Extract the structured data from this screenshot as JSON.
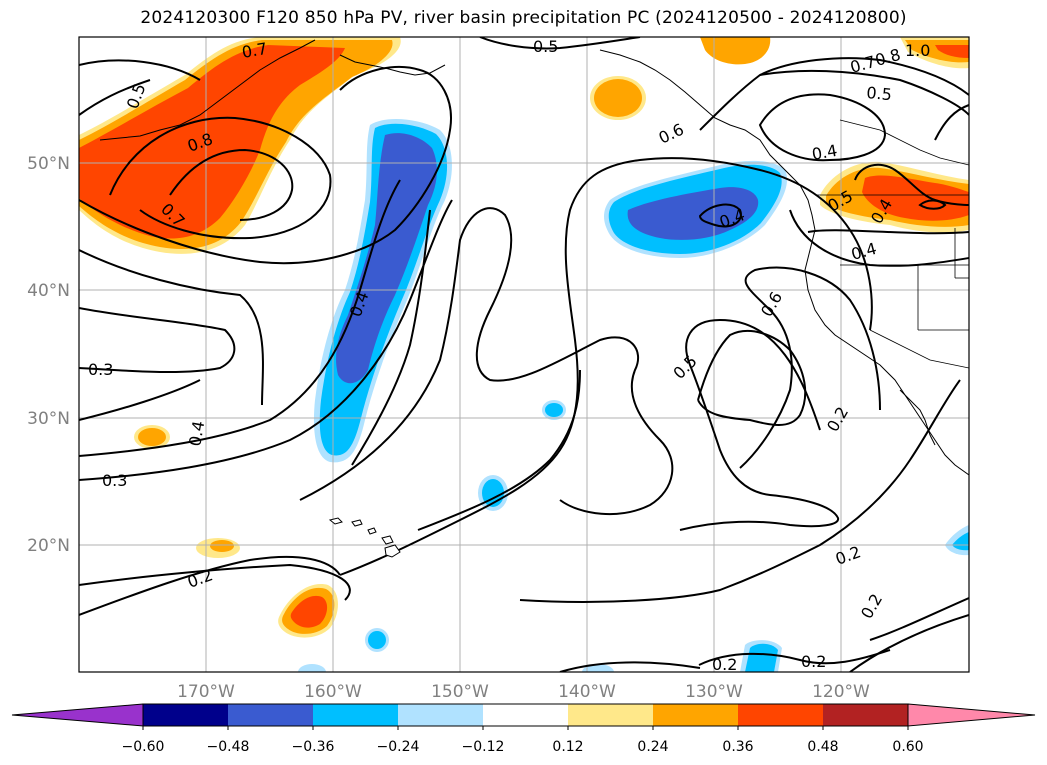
{
  "title": "2024120300 F120 850 hPa PV, river basin precipitation PC (2024120500 - 2024120800)",
  "lon_ticks": [
    "170°W",
    "160°W",
    "150°W",
    "140°W",
    "130°W",
    "120°W"
  ],
  "lat_ticks": [
    "50°N",
    "40°N",
    "30°N",
    "20°N"
  ],
  "colorbar": {
    "ticks": [
      "−0.60",
      "−0.48",
      "−0.36",
      "−0.24",
      "−0.12",
      "0.12",
      "0.24",
      "0.36",
      "0.48",
      "0.60"
    ],
    "colors": [
      "#9932cc",
      "#00008b",
      "#3a5bd0",
      "#00bfff",
      "#b0e2ff",
      "#ffffff",
      "#ffe88a",
      "#ffa500",
      "#ff4500",
      "#b22222",
      "#ff88aa"
    ]
  },
  "contour_labels": [
    "0.7",
    "0.5",
    "0.8",
    "0.7",
    "0.5",
    "0.4",
    "0.3",
    "0.3",
    "0.4",
    "0.2",
    "0.5",
    "0.6",
    "0.4",
    "0.4",
    "0.5",
    "0.6",
    "0.7",
    "0.8",
    "1.0",
    "0.5",
    "0.4",
    "0.4",
    "0.2",
    "0.2",
    "0.2",
    "0.2",
    "0.2"
  ]
}
